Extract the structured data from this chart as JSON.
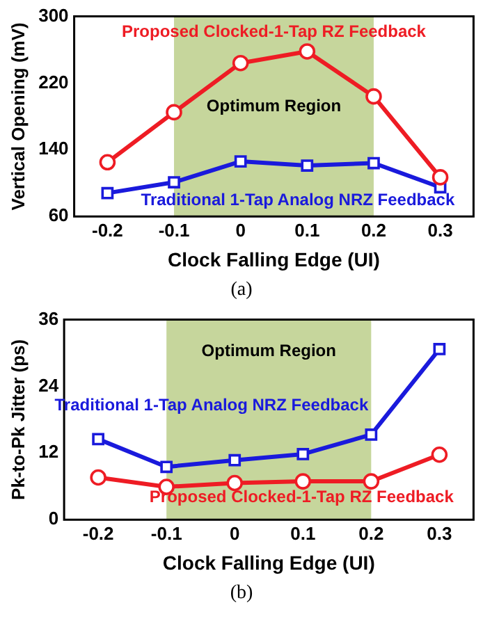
{
  "chart_data": [
    {
      "type": "line",
      "xlabel": "Clock Falling Edge (UI)",
      "ylabel": "Vertical Opening (mV)",
      "x": [
        -0.2,
        -0.1,
        0,
        0.1,
        0.2,
        0.3
      ],
      "xlim": [
        -0.25,
        0.35
      ],
      "xticks": [
        -0.2,
        -0.1,
        0,
        0.1,
        0.2,
        0.3
      ],
      "ylim": [
        60,
        300
      ],
      "yticks": [
        60,
        140,
        220,
        300
      ],
      "grid": false,
      "legend": false,
      "series": [
        {
          "name": "Proposed Clocked-1-Tap RZ Feedback",
          "color": "#ee1c24",
          "marker": "circle",
          "values": [
            125,
            185,
            244,
            258,
            204,
            107
          ]
        },
        {
          "name": "Traditional 1-Tap Analog NRZ Feedback",
          "color": "#1a1adc",
          "marker": "square",
          "values": [
            88,
            101,
            126,
            121,
            124,
            95
          ]
        }
      ],
      "bands": [
        {
          "axis": "x",
          "from": -0.1,
          "to": 0.2,
          "label": "Optimum Region",
          "color": "#c6d69c"
        }
      ],
      "annotations": [
        "(a)"
      ]
    },
    {
      "type": "line",
      "xlabel": "Clock Falling Edge (UI)",
      "ylabel": "Pk-to-Pk Jitter (ps)",
      "x": [
        -0.2,
        -0.1,
        0,
        0.1,
        0.2,
        0.3
      ],
      "xlim": [
        -0.25,
        0.35
      ],
      "xticks": [
        -0.2,
        -0.1,
        0,
        0.1,
        0.2,
        0.3
      ],
      "ylim": [
        0,
        36
      ],
      "yticks": [
        0,
        12,
        24,
        36
      ],
      "grid": false,
      "legend": false,
      "series": [
        {
          "name": "Traditional 1-Tap Analog NRZ Feedback",
          "color": "#1a1adc",
          "marker": "square",
          "values": [
            14.5,
            9.5,
            10.7,
            11.8,
            15.3,
            30.7
          ]
        },
        {
          "name": "Proposed Clocked-1-Tap RZ Feedback",
          "color": "#ee1c24",
          "marker": "circle",
          "values": [
            7.6,
            5.9,
            6.6,
            6.9,
            6.9,
            11.7
          ]
        }
      ],
      "bands": [
        {
          "axis": "x",
          "from": -0.1,
          "to": 0.2,
          "label": "Optimum Region",
          "color": "#c6d69c"
        }
      ],
      "annotations": [
        "(b)"
      ]
    }
  ]
}
